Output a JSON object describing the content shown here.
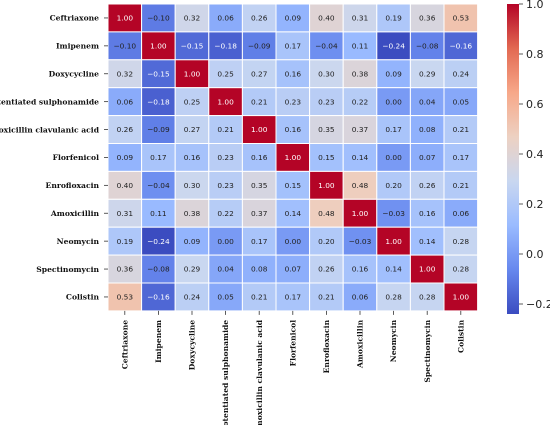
{
  "chart_data": {
    "type": "heatmap",
    "labels": [
      "Ceftriaxone",
      "Imipenem",
      "Doxycycline",
      "Potentiated sulphonamide",
      "Amoxicillin clavulanic acid",
      "Florfenicol",
      "Enrofloxacin",
      "Amoxicillin",
      "Neomycin",
      "Spectinomycin",
      "Colistin"
    ],
    "cell_text": [
      [
        "1.00",
        "−0.10",
        "0.32",
        "0.06",
        "0.26",
        "0.09",
        "0.40",
        "0.31",
        "0.19",
        "0.36",
        "0.53"
      ],
      [
        "−0.10",
        "1.00",
        "−0.15",
        "−0.18",
        "−0.09",
        "0.17",
        "−0.04",
        "0.11",
        "−0.24",
        "−0.08",
        "−0.16"
      ],
      [
        "0.32",
        "−0.15",
        "1.00",
        "0.25",
        "0.27",
        "0.16",
        "0.30",
        "0.38",
        "0.09",
        "0.29",
        "0.24"
      ],
      [
        "0.06",
        "−0.18",
        "0.25",
        "1.00",
        "0.21",
        "0.23",
        "0.23",
        "0.22",
        "0.00",
        "0.04",
        "0.05"
      ],
      [
        "0.26",
        "−0.09",
        "0.27",
        "0.21",
        "1.00",
        "0.16",
        "0.35",
        "0.37",
        "0.17",
        "0.08",
        "0.21"
      ],
      [
        "0.09",
        "0.17",
        "0.16",
        "0.23",
        "0.16",
        "1.00",
        "0.15",
        "0.14",
        "0.00",
        "0.07",
        "0.17"
      ],
      [
        "0.40",
        "−0.04",
        "0.30",
        "0.23",
        "0.35",
        "0.15",
        "1.00",
        "0.48",
        "0.20",
        "0.26",
        "0.21"
      ],
      [
        "0.31",
        "0.11",
        "0.38",
        "0.22",
        "0.37",
        "0.14",
        "0.48",
        "1.00",
        "−0.03",
        "0.16",
        "0.06"
      ],
      [
        "0.19",
        "−0.24",
        "0.09",
        "0.00",
        "0.17",
        "0.00",
        "0.20",
        "−0.03",
        "1.00",
        "0.14",
        "0.28"
      ],
      [
        "0.36",
        "−0.08",
        "0.29",
        "0.04",
        "0.08",
        "0.07",
        "0.26",
        "0.16",
        "0.14",
        "1.00",
        "0.28"
      ],
      [
        "0.53",
        "−0.16",
        "0.24",
        "0.05",
        "0.21",
        "0.17",
        "0.21",
        "0.06",
        "0.28",
        "0.28",
        "1.00"
      ]
    ],
    "values": [
      [
        1.0,
        -0.1,
        0.32,
        0.06,
        0.26,
        0.09,
        0.4,
        0.31,
        0.19,
        0.36,
        0.53
      ],
      [
        -0.1,
        1.0,
        -0.15,
        -0.18,
        -0.09,
        0.17,
        -0.04,
        0.11,
        -0.24,
        -0.08,
        -0.16
      ],
      [
        0.32,
        -0.15,
        1.0,
        0.25,
        0.27,
        0.16,
        0.3,
        0.38,
        0.09,
        0.29,
        0.24
      ],
      [
        0.06,
        -0.18,
        0.25,
        1.0,
        0.21,
        0.23,
        0.23,
        0.22,
        0.0,
        0.04,
        0.05
      ],
      [
        0.26,
        -0.09,
        0.27,
        0.21,
        1.0,
        0.16,
        0.35,
        0.37,
        0.17,
        0.08,
        0.21
      ],
      [
        0.09,
        0.17,
        0.16,
        0.23,
        0.16,
        1.0,
        0.15,
        0.14,
        0.0,
        0.07,
        0.17
      ],
      [
        0.4,
        -0.04,
        0.3,
        0.23,
        0.35,
        0.15,
        1.0,
        0.48,
        0.2,
        0.26,
        0.21
      ],
      [
        0.31,
        0.11,
        0.38,
        0.22,
        0.37,
        0.14,
        0.48,
        1.0,
        -0.03,
        0.16,
        0.06
      ],
      [
        0.19,
        -0.24,
        0.09,
        0.0,
        0.17,
        0.0,
        0.2,
        -0.03,
        1.0,
        0.14,
        0.28
      ],
      [
        0.36,
        -0.08,
        0.29,
        0.04,
        0.08,
        0.07,
        0.26,
        0.16,
        0.14,
        1.0,
        0.28
      ],
      [
        0.53,
        -0.16,
        0.24,
        0.05,
        0.21,
        0.17,
        0.21,
        0.06,
        0.28,
        0.28,
        1.0
      ]
    ],
    "colorbar": {
      "range": [
        -0.24,
        1.0
      ],
      "ticks": [
        -0.2,
        0.0,
        0.2,
        0.4,
        0.6,
        0.8,
        1.0
      ],
      "tick_labels": [
        "−0.2",
        "0.0",
        "0.2",
        "0.4",
        "0.6",
        "0.8",
        "1.0"
      ],
      "colormap": "coolwarm",
      "stops": [
        "#3b4cc0",
        "#6788ee",
        "#9abbff",
        "#c9d7f0",
        "#edd1c2",
        "#f7a889",
        "#e26952",
        "#b40426"
      ]
    },
    "cell_border": "#ffffff"
  }
}
